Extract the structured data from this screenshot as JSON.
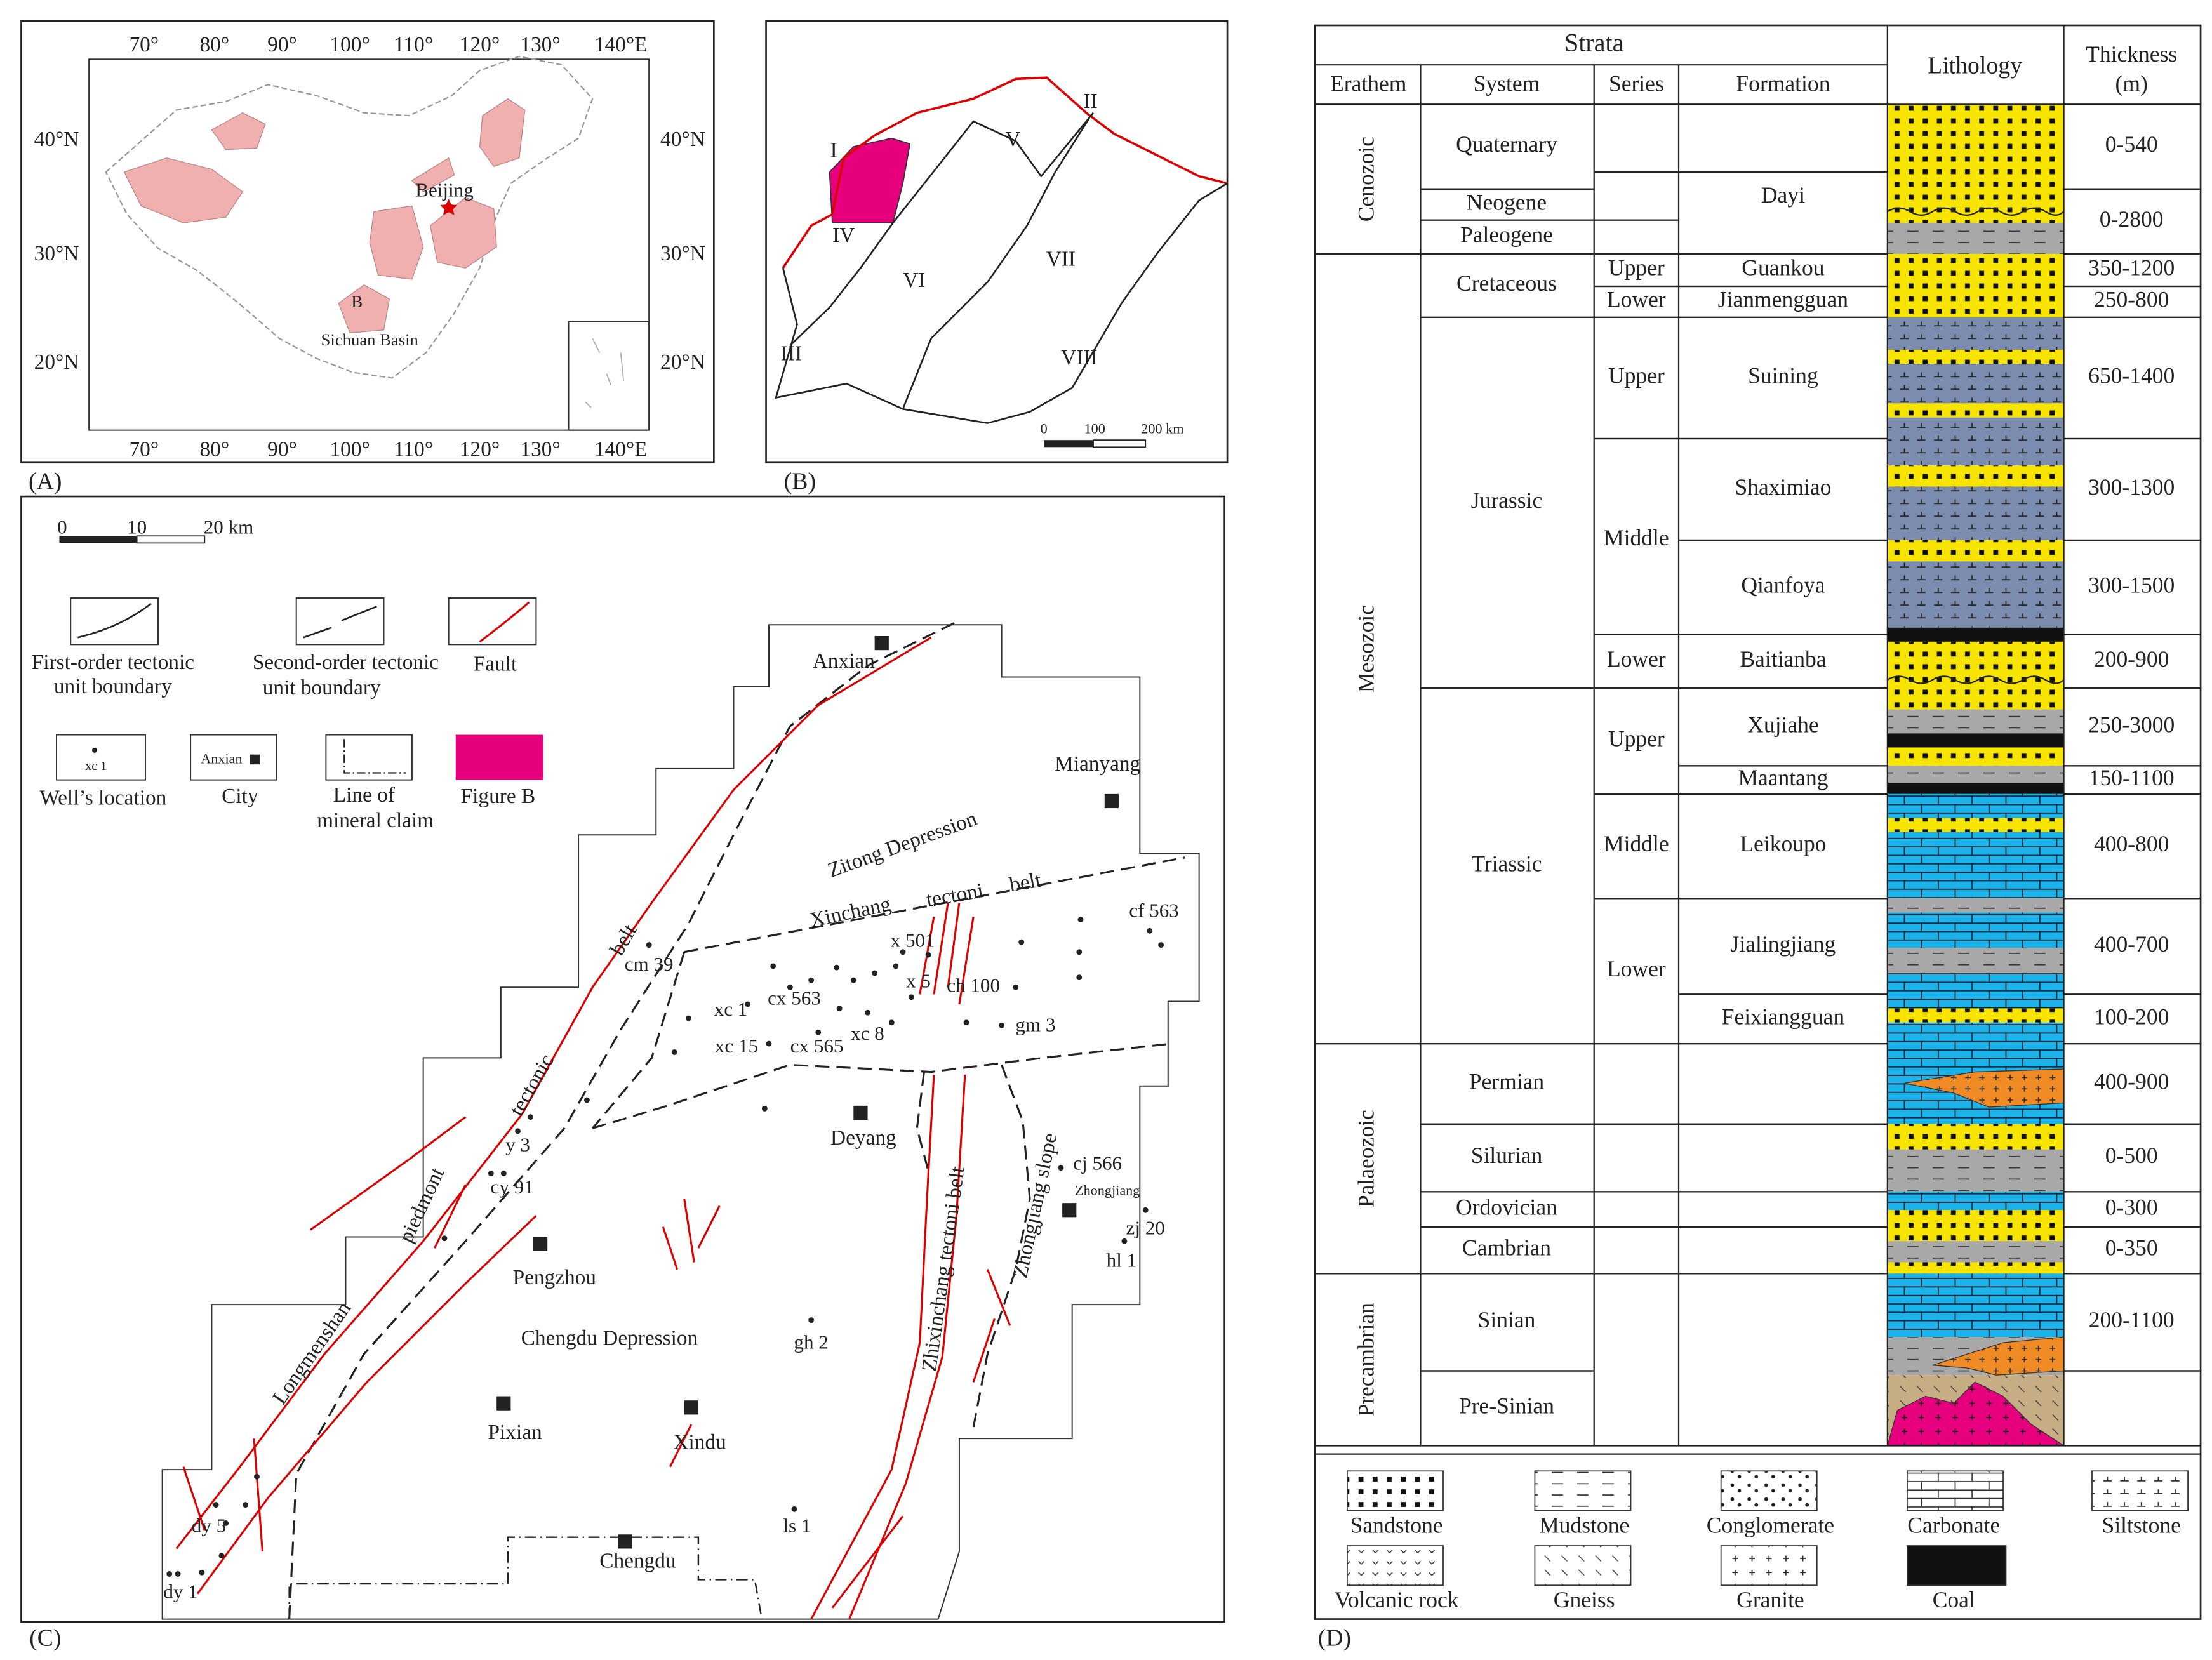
{
  "panel_a": {
    "label": "(A)",
    "longitude_labels": [
      "70°",
      "80°",
      "90°",
      "100°",
      "110°",
      "120°",
      "130°",
      "140°E"
    ],
    "latitude_labels": [
      "40°N",
      "30°N",
      "20°N"
    ],
    "places": [
      "Beijing",
      "B",
      "Sichuan Basin"
    ]
  },
  "panel_b": {
    "label": "(B)",
    "units": [
      "I",
      "II",
      "III",
      "IV",
      "V",
      "VI",
      "VII",
      "VIII"
    ],
    "scale_labels": [
      "0",
      "100",
      "200 km"
    ]
  },
  "panel_c": {
    "label": "(C)",
    "scale_labels": [
      "0",
      "10",
      "20 km"
    ],
    "legend": [
      {
        "lines": [
          "First-order tectonic",
          "unit boundary"
        ]
      },
      {
        "lines": [
          "Second-order tectonic",
          "unit boundary"
        ]
      },
      {
        "lines": [
          "Fault"
        ]
      },
      {
        "lines": [
          "Well’s location"
        ],
        "sample": "xc 1"
      },
      {
        "lines": [
          "City"
        ],
        "sample": "Anxian"
      },
      {
        "lines": [
          "Line of",
          "mineral claim"
        ]
      },
      {
        "lines": [
          "Figure B"
        ]
      }
    ],
    "cities": [
      "Anxian",
      "Mianyang",
      "Deyang",
      "Pengzhou",
      "Pixian",
      "Xindu",
      "Chengdu",
      "Zhongjiang"
    ],
    "wells": [
      "cm 39",
      "cf 563",
      "x 501",
      "x 5",
      "ch 100",
      "xc 1",
      "cx 563",
      "xc 8",
      "xc 15",
      "cx 565",
      "gm 3",
      "y 3",
      "cy 91",
      "cj 566",
      "zj 20",
      "hl 1",
      "gh 2",
      "ls 1",
      "dy 5",
      "dy 1"
    ],
    "structures": [
      "Zitong Depression",
      "Xinchang",
      "tectoni",
      "belt",
      "Longmenshan",
      "piedmont",
      "tectonic",
      "belt",
      "Chengdu Depression",
      "Zhixinchang tectoni belt",
      "Zhongjiang slope"
    ]
  },
  "panel_d": {
    "label": "(D)",
    "header": {
      "strata": "Strata",
      "erathem": "Erathem",
      "system": "System",
      "series": "Series",
      "formation": "Formation",
      "lithology": "Lithology",
      "thickness": [
        "Thickness",
        "(m)"
      ]
    },
    "erathems": [
      "Cenozoic",
      "Mesozoic",
      "Palaeozoic",
      "Precambrian"
    ],
    "systems": [
      "Quaternary",
      "Neogene",
      "Paleogene",
      "Cretaceous",
      "Jurassic",
      "Triassic",
      "Permian",
      "Silurian",
      "Ordovician",
      "Cambrian",
      "Sinian",
      "Pre-Sinian"
    ],
    "series": [
      "Upper",
      "Lower",
      "Upper",
      "Middle",
      "Lower",
      "Upper",
      "Middle",
      "Lower"
    ],
    "formations": [
      "Dayi",
      "Guankou",
      "Jianmengguan",
      "Suining",
      "Shaximiao",
      "Qianfoya",
      "Baitianba",
      "Xujiahe",
      "Maantang",
      "Leikoupo",
      "Jialingjiang",
      "Feixiangguan"
    ],
    "thickness": [
      "0-540",
      "0-2800",
      "350-1200",
      "250-800",
      "650-1400",
      "300-1300",
      "300-1500",
      "200-900",
      "250-3000",
      "150-1100",
      "400-800",
      "400-700",
      "100-200",
      "400-900",
      "0-500",
      "0-300",
      "0-350",
      "200-1100"
    ],
    "legend": [
      "Sandstone",
      "Mudstone",
      "Conglomerate",
      "Carbonate",
      "Siltstone",
      "Volcanic rock",
      "Gneiss",
      "Granite",
      "Coal"
    ]
  }
}
